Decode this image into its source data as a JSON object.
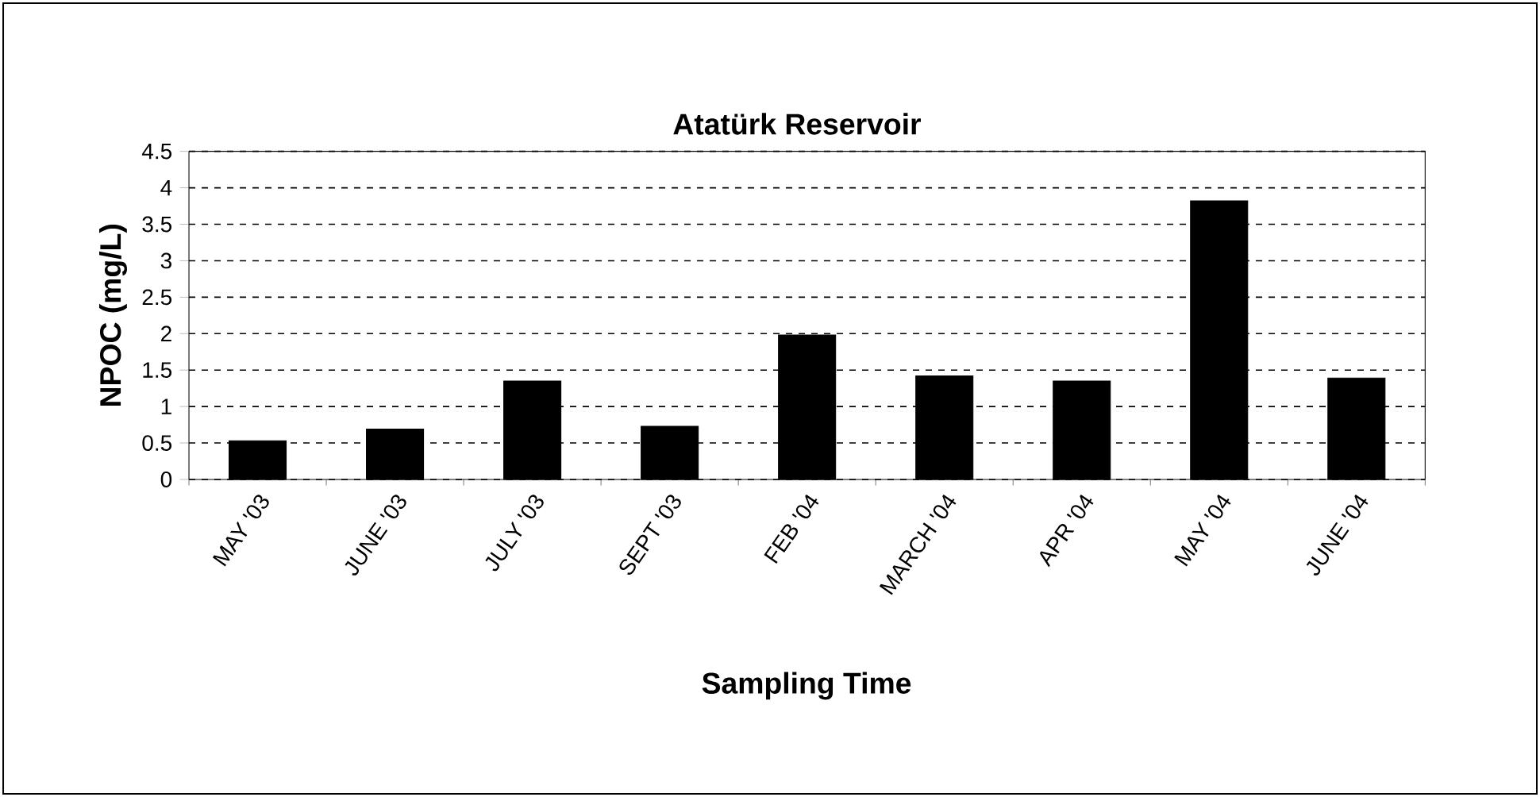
{
  "chart_data": {
    "type": "bar",
    "title": "Atatürk Reservoir",
    "xlabel": "Sampling Time",
    "ylabel": "NPOC (mg/L)",
    "categories": [
      "MAY '03",
      "JUNE '03",
      "JULY '03",
      "SEPT '03",
      "FEB '04",
      "MARCH '04",
      "APR '04",
      "MAY '04",
      "JUNE '04"
    ],
    "values": [
      0.53,
      0.69,
      1.35,
      0.73,
      1.98,
      1.42,
      1.35,
      3.82,
      1.39
    ],
    "color": "#000000",
    "ylim": [
      0,
      4.5
    ],
    "yticks": [
      0,
      0.5,
      1,
      1.5,
      2,
      2.5,
      3,
      3.5,
      4,
      4.5
    ],
    "grid": "y"
  }
}
